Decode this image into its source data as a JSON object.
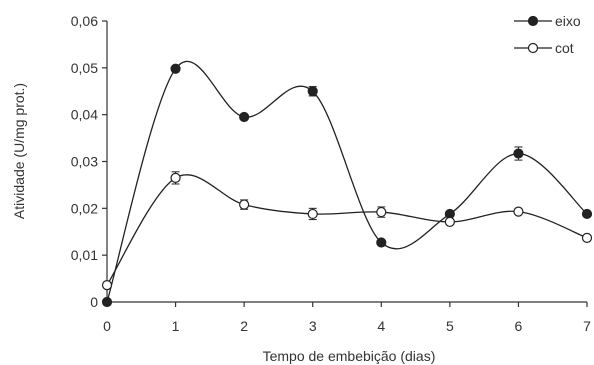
{
  "chart_data": {
    "type": "line",
    "xlabel": "Tempo de embebição (dias)",
    "ylabel": "Atividade (U/mg prot.)",
    "x": [
      0,
      1,
      2,
      3,
      4,
      5,
      6,
      7
    ],
    "xlim": [
      0,
      7
    ],
    "ylim": [
      0,
      0.06
    ],
    "x_ticks": [
      "0",
      "1",
      "2",
      "3",
      "4",
      "5",
      "6",
      "7"
    ],
    "y_ticks": [
      "0",
      "0,01",
      "0,02",
      "0,03",
      "0,04",
      "0,05",
      "0,06"
    ],
    "y_tick_values": [
      0,
      0.01,
      0.02,
      0.03,
      0.04,
      0.05,
      0.06
    ],
    "grid": false,
    "legend_position": "top-right",
    "smooth": true,
    "series": [
      {
        "name": "eixo",
        "marker": "filled-circle",
        "color": "#222222",
        "values": [
          0.0,
          0.0498,
          0.0395,
          0.045,
          0.0127,
          0.0188,
          0.0317,
          0.0188
        ],
        "errors": [
          0,
          0.0006,
          0.0004,
          0.001,
          0.0003,
          0.0003,
          0.0014,
          0.0003
        ]
      },
      {
        "name": "cot",
        "marker": "open-circle",
        "color": "#222222",
        "values": [
          0.0036,
          0.0265,
          0.0208,
          0.0188,
          0.0192,
          0.0171,
          0.0193,
          0.0137
        ],
        "errors": [
          0,
          0.0013,
          0.001,
          0.0012,
          0.0011,
          0.0003,
          0.0003,
          0.0003
        ]
      }
    ]
  }
}
